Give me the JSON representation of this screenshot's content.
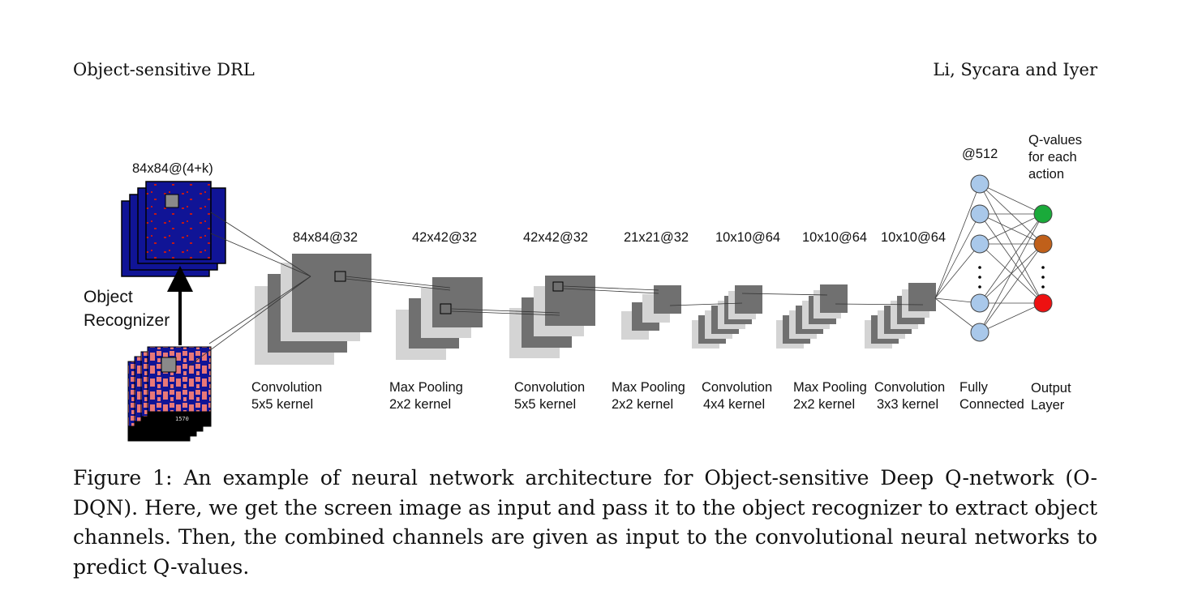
{
  "header": {
    "left": "Object-sensitive DRL",
    "right": "Li, Sycara and Iyer"
  },
  "figure": {
    "input_label": "84x84@(4+k)",
    "recognizer_label_line1": "Object",
    "recognizer_label_line2": "Recognizer",
    "game_score": "1570",
    "layers": [
      {
        "dims": "84x84@32",
        "op_line1": "Convolution",
        "op_line2": "5x5 kernel"
      },
      {
        "dims": "42x42@32",
        "op_line1": "Max Pooling",
        "op_line2": "2x2 kernel"
      },
      {
        "dims": "42x42@32",
        "op_line1": "Convolution",
        "op_line2": "5x5 kernel"
      },
      {
        "dims": "21x21@32",
        "op_line1": "Max Pooling",
        "op_line2": "2x2 kernel"
      },
      {
        "dims": "10x10@64",
        "op_line1": "Convolution",
        "op_line2": "4x4 kernel"
      },
      {
        "dims": "10x10@64",
        "op_line1": "Max Pooling",
        "op_line2": "2x2 kernel"
      },
      {
        "dims": "10x10@64",
        "op_line1": "Convolution",
        "op_line2": "3x3 kernel"
      }
    ],
    "fc": {
      "dims": "@512",
      "label_line1": "Fully",
      "label_line2": "Connected"
    },
    "output": {
      "title_line1": "Q-values",
      "title_line2": "for each",
      "title_line3": "action",
      "label_line1": "Output",
      "label_line2": "Layer",
      "node_colors": [
        "#1aaa3a",
        "#c0601a",
        "#ee1111"
      ]
    },
    "colors": {
      "fc_node": "#a9c8ea",
      "feature_map_dark": "#707070",
      "feature_map_light": "#d4d4d4",
      "screen_blue": "#101496",
      "maze_pink": "#e87878"
    }
  },
  "caption": "Figure 1: An example of neural network architecture for Object-sensitive Deep Q-network (O-DQN). Here, we get the screen image as input and pass it to the object recognizer to extract object channels. Then, the combined channels are given as input to the convolutional neural networks to predict Q-values."
}
